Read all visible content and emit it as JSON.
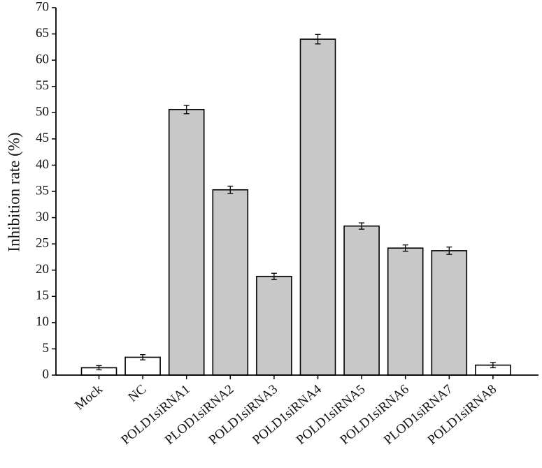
{
  "chart_data": {
    "type": "bar",
    "title": "",
    "xlabel": "",
    "ylabel": "Inhibition rate (%)",
    "ylim": [
      0,
      70
    ],
    "yticks": [
      0,
      5,
      10,
      15,
      20,
      25,
      30,
      35,
      40,
      45,
      50,
      55,
      60,
      65,
      70
    ],
    "categories": [
      "Mock",
      "NC",
      "POLD1siRNA1",
      "PLOD1siRNA2",
      "POLD1siRNA3",
      "POLD1siRNA4",
      "POLD1siRNA5",
      "POLD1siRNA6",
      "PLOD1siRNA7",
      "POLD1siRNA8"
    ],
    "values": [
      1.4,
      3.4,
      50.6,
      35.3,
      18.8,
      64.0,
      28.4,
      24.2,
      23.7,
      1.9
    ],
    "errors": [
      0.4,
      0.5,
      0.8,
      0.7,
      0.6,
      0.9,
      0.6,
      0.6,
      0.7,
      0.5
    ],
    "bar_colors": [
      "#ffffff",
      "#ffffff",
      "#c8c8c8",
      "#c8c8c8",
      "#c8c8c8",
      "#c8c8c8",
      "#c8c8c8",
      "#c8c8c8",
      "#c8c8c8",
      "#ffffff"
    ],
    "grid": false,
    "legend": "none"
  }
}
